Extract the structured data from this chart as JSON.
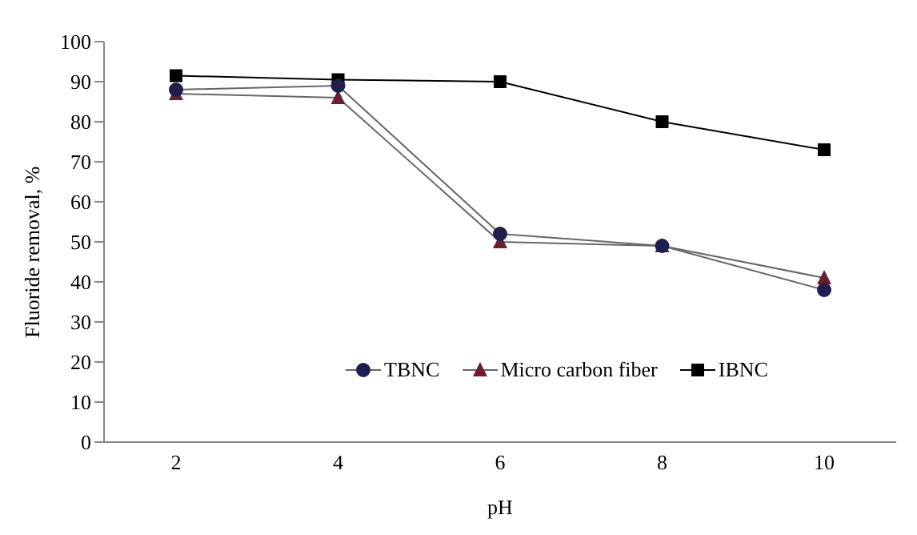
{
  "chart_data": {
    "type": "line",
    "xlabel": "pH",
    "ylabel": "Fluoride removal, %",
    "categories": [
      "2",
      "4",
      "6",
      "8",
      "10"
    ],
    "series": [
      {
        "name": "TBNC",
        "color": "#1f1f4f",
        "marker": "circle",
        "values": [
          88,
          89,
          52,
          49,
          38
        ]
      },
      {
        "name": "Micro carbon fiber",
        "color": "#6b1e2e",
        "marker": "triangle",
        "values": [
          87,
          86,
          50,
          49,
          41
        ]
      },
      {
        "name": "IBNC",
        "color": "#000000",
        "marker": "square",
        "values": [
          91.5,
          90.5,
          90,
          80,
          73
        ]
      }
    ],
    "ylim": [
      0,
      100
    ],
    "yticks": [
      0,
      10,
      20,
      30,
      40,
      50,
      60,
      70,
      80,
      90,
      100
    ],
    "grid": false,
    "legend": "bottom",
    "line_style": "solid"
  }
}
